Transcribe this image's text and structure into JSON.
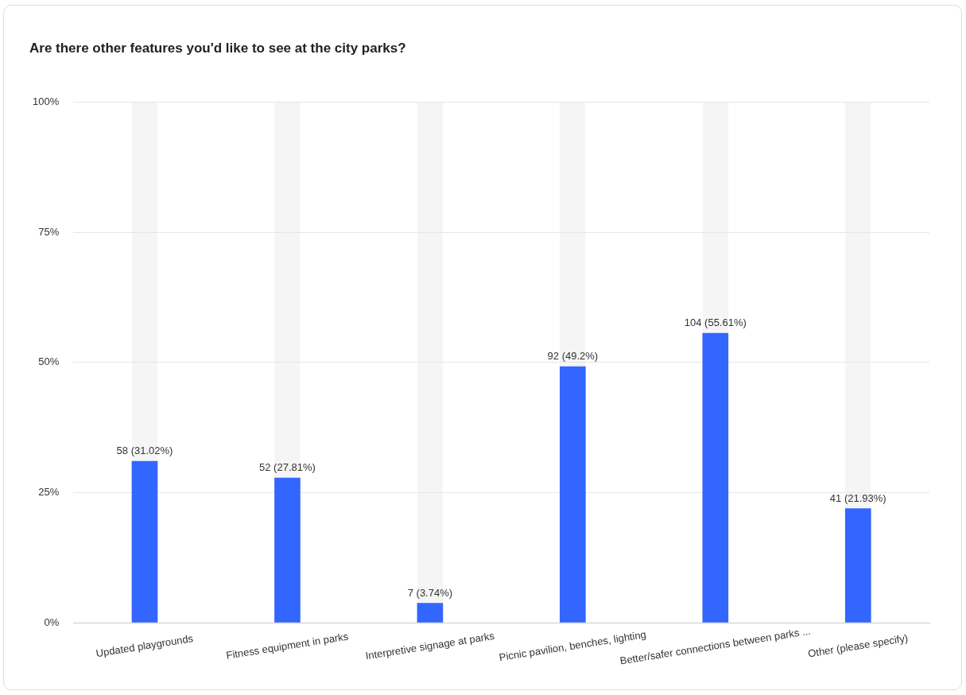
{
  "chart_data": {
    "type": "bar",
    "title": "Are there other features you'd like to see at the city parks?",
    "categories": [
      "Updated playgrounds",
      "Fitness equipment in parks",
      "Interpretive signage at parks",
      "Picnic pavilion, benches, lighting",
      "Better/safer connections between parks ...",
      "Other (please specify)"
    ],
    "series": [
      {
        "color": "#3366ff",
        "values": [
          31.02,
          27.81,
          3.74,
          49.2,
          55.61,
          21.93
        ],
        "value_labels": [
          "58 (31.02%)",
          "52 (27.81%)",
          "7 (3.74%)",
          "92 (49.2%)",
          "104 (55.61%)",
          "41 (21.93%)"
        ]
      }
    ],
    "ylim": [
      0,
      100
    ],
    "yticks": [
      {
        "value": 0,
        "label": "0%"
      },
      {
        "value": 25,
        "label": "25%"
      },
      {
        "value": 50,
        "label": "50%"
      },
      {
        "value": 75,
        "label": "75%"
      },
      {
        "value": 100,
        "label": "100%"
      }
    ],
    "grid": "y"
  }
}
